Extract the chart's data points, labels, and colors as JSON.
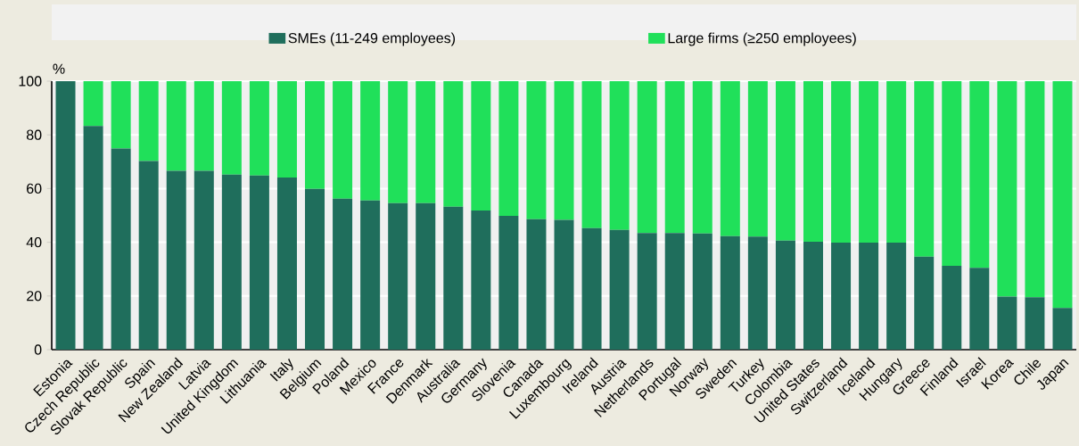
{
  "chart_data": {
    "type": "bar",
    "stacked": true,
    "ylabel": "%",
    "categories": [
      "Estonia",
      "Czech Republic",
      "Slovak Republic",
      "Spain",
      "New Zealand",
      "Latvia",
      "United Kingdom",
      "Lithuania",
      "Italy",
      "Belgium",
      "Poland",
      "Mexico",
      "France",
      "Denmark",
      "Australia",
      "Germany",
      "Slovenia",
      "Canada",
      "Luxembourg",
      "Ireland",
      "Austria",
      "Netherlands",
      "Portugal",
      "Norway",
      "Sweden",
      "Turkey",
      "Colombia",
      "United States",
      "Switzerland",
      "Iceland",
      "Hungary",
      "Greece",
      "Finland",
      "Israel",
      "Korea",
      "Chile",
      "Japan"
    ],
    "series": [
      {
        "name": "SMEs (11-249 employees)",
        "color": "#1f6e5c",
        "values": [
          100,
          83.3,
          74.9,
          70.3,
          66.6,
          66.6,
          65.2,
          64.9,
          64.1,
          59.9,
          56.2,
          55.6,
          54.6,
          54.6,
          53.2,
          51.8,
          49.8,
          48.6,
          48.3,
          45.3,
          44.6,
          43.4,
          43.4,
          43.3,
          42.3,
          42.1,
          40.6,
          40.2,
          39.9,
          39.9,
          39.9,
          34.6,
          31.2,
          30.5,
          19.8,
          19.5,
          15.5
        ]
      },
      {
        "name": "Large firms (≥250 employees)",
        "color": "#20e05a",
        "values": [
          0,
          16.7,
          25.1,
          29.7,
          33.4,
          33.4,
          34.8,
          35.1,
          35.9,
          40.1,
          43.8,
          44.4,
          45.4,
          45.4,
          46.8,
          48.2,
          50.2,
          51.4,
          51.7,
          54.7,
          55.4,
          56.6,
          56.6,
          56.7,
          57.7,
          57.9,
          59.4,
          59.8,
          60.1,
          60.1,
          60.1,
          65.4,
          68.8,
          69.5,
          80.2,
          80.5,
          84.5
        ]
      }
    ],
    "ylim": [
      0,
      100
    ],
    "yticks": [
      0,
      20,
      40,
      60,
      80,
      100
    ],
    "grid": "y",
    "legend": "top"
  }
}
